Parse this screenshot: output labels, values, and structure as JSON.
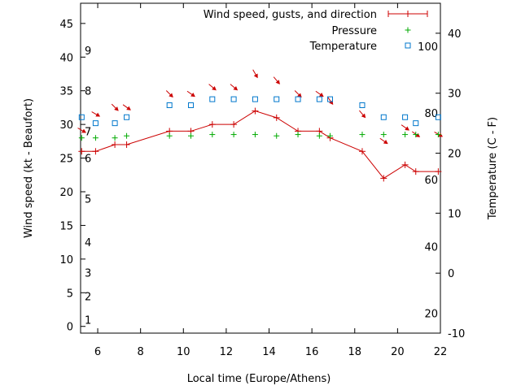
{
  "chart_data": {
    "type": "line",
    "xlabel": "Local time (Europe/Athens)",
    "ylabel_left": "Wind speed (kt - Beaufort)",
    "ylabel_right": "Temperature (C - F)",
    "xlim": [
      5.2,
      22
    ],
    "ylim_left": [
      -1,
      48
    ],
    "ylim_right": [
      -10,
      45
    ],
    "x_ticks": [
      6,
      8,
      10,
      12,
      14,
      16,
      18,
      20,
      22
    ],
    "y_left_ticks": [
      0,
      5,
      10,
      15,
      20,
      25,
      30,
      35,
      40,
      45
    ],
    "y_right_ticks": [
      -10,
      0,
      10,
      20,
      30,
      40
    ],
    "beaufort_labels": [
      {
        "label": "1",
        "kt": 1
      },
      {
        "label": "2",
        "kt": 4.5
      },
      {
        "label": "3",
        "kt": 8
      },
      {
        "label": "4",
        "kt": 12.5
      },
      {
        "label": "5",
        "kt": 19
      },
      {
        "label": "6",
        "kt": 25
      },
      {
        "label": "7",
        "kt": 29
      },
      {
        "label": "8",
        "kt": 35
      },
      {
        "label": "9",
        "kt": 41
      }
    ],
    "fahrenheit_labels": [
      {
        "label": "20",
        "c": -6.7
      },
      {
        "label": "40",
        "c": 4.4
      },
      {
        "label": "60",
        "c": 15.6
      },
      {
        "label": "80",
        "c": 26.7
      },
      {
        "label": "100",
        "c": 37.8
      }
    ],
    "legend_position": "top-right",
    "series": [
      {
        "name": "Wind speed, gusts, and direction",
        "color": "#cc0000",
        "marker": "+",
        "x": [
          5.25,
          5.9,
          6.8,
          7.35,
          9.35,
          10.35,
          11.35,
          12.35,
          13.35,
          14.35,
          15.35,
          16.35,
          16.85,
          18.35,
          19.35,
          20.35,
          20.85,
          21.9
        ],
        "y": [
          26,
          26,
          27,
          27,
          29,
          29,
          30,
          30,
          32,
          31,
          29,
          29,
          28,
          26,
          22,
          24,
          23,
          23
        ],
        "direction_arrow_deg": [
          150,
          150,
          135,
          145,
          135,
          145,
          140,
          140,
          120,
          130,
          135,
          145,
          125,
          130,
          145,
          145,
          145,
          150
        ]
      },
      {
        "name": "Pressure",
        "color": "#00aa00",
        "marker": "+",
        "x": [
          5.25,
          5.9,
          6.8,
          7.35,
          9.35,
          10.35,
          11.35,
          12.35,
          13.35,
          14.35,
          15.35,
          16.35,
          16.85,
          18.35,
          19.35,
          20.35,
          20.85,
          21.9
        ],
        "y": [
          28,
          28,
          28,
          28.3,
          28.3,
          28.3,
          28.5,
          28.5,
          28.5,
          28.3,
          28.5,
          28.3,
          28.3,
          28.5,
          28.5,
          28.5,
          28.5,
          28.5
        ]
      },
      {
        "name": "Temperature",
        "color": "#0077cc",
        "marker": "square",
        "x": [
          5.25,
          5.9,
          6.8,
          7.35,
          9.35,
          10.35,
          11.35,
          12.35,
          13.35,
          14.35,
          15.35,
          16.35,
          16.85,
          18.35,
          19.35,
          20.35,
          20.85,
          21.9
        ],
        "y": [
          26,
          25,
          25,
          26,
          28,
          28,
          29,
          29,
          29,
          29,
          29,
          29,
          29,
          28,
          26,
          26,
          25,
          26
        ]
      }
    ]
  }
}
